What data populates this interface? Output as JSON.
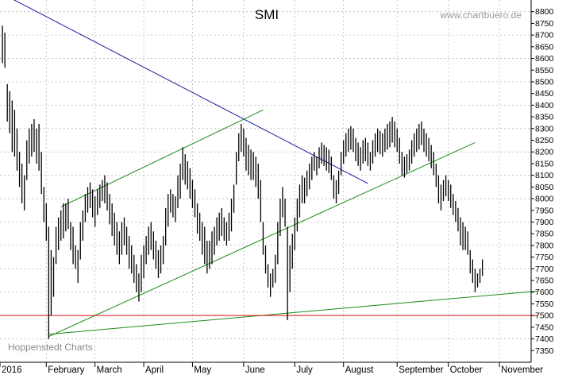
{
  "chart_data": {
    "type": "bar",
    "title": "SMI",
    "watermark": "www.chartbuero.de",
    "source_label": "Hoppenstedt Charts",
    "xlabel": "",
    "ylabel": "",
    "ylim": [
      7300,
      8850
    ],
    "xlim": [
      0,
      218
    ],
    "grid": true,
    "y_ticks": [
      7350,
      7400,
      7450,
      7500,
      7550,
      7600,
      7650,
      7700,
      7750,
      7800,
      7850,
      7900,
      7950,
      8000,
      8050,
      8100,
      8150,
      8200,
      8250,
      8300,
      8350,
      8400,
      8450,
      8500,
      8550,
      8600,
      8650,
      8700,
      8750,
      8800
    ],
    "x_ticks": [
      {
        "label": "2016",
        "x": 0
      },
      {
        "label": "February",
        "x": 19
      },
      {
        "label": "March",
        "x": 39
      },
      {
        "label": "April",
        "x": 59
      },
      {
        "label": "May",
        "x": 79
      },
      {
        "label": "June",
        "x": 100
      },
      {
        "label": "July",
        "x": 121
      },
      {
        "label": "August",
        "x": 141
      },
      {
        "label": "September",
        "x": 163
      },
      {
        "label": "October",
        "x": 184
      },
      {
        "label": "November",
        "x": 205
      }
    ],
    "series": [
      {
        "values": [
          [
            8740,
            8580
          ],
          [
            8710,
            8560
          ],
          [
            8490,
            8330
          ],
          [
            8460,
            8280
          ],
          [
            8420,
            8200
          ],
          [
            8380,
            8180
          ],
          [
            8300,
            8120
          ],
          [
            8200,
            8050
          ],
          [
            8150,
            7980
          ],
          [
            8100,
            7950
          ],
          [
            8250,
            8080
          ],
          [
            8300,
            8150
          ],
          [
            8320,
            8180
          ],
          [
            8340,
            8200
          ],
          [
            8300,
            8150
          ],
          [
            8320,
            8120
          ],
          [
            8200,
            8020
          ],
          [
            8050,
            7900
          ],
          [
            7980,
            7820
          ],
          [
            7880,
            7400
          ],
          [
            7780,
            7500
          ],
          [
            7750,
            7580
          ],
          [
            7880,
            7720
          ],
          [
            7920,
            7780
          ],
          [
            7950,
            7820
          ],
          [
            7980,
            7830
          ],
          [
            7980,
            7860
          ],
          [
            8000,
            7870
          ],
          [
            7900,
            7780
          ],
          [
            7880,
            7720
          ],
          [
            7800,
            7700
          ],
          [
            7780,
            7640
          ],
          [
            7900,
            7740
          ],
          [
            7950,
            7820
          ],
          [
            8020,
            7900
          ],
          [
            8050,
            7940
          ],
          [
            8070,
            7960
          ],
          [
            8040,
            7920
          ],
          [
            8010,
            7880
          ],
          [
            8040,
            7930
          ],
          [
            8060,
            7960
          ],
          [
            8080,
            7990
          ],
          [
            8100,
            7980
          ],
          [
            8070,
            7950
          ],
          [
            8020,
            7890
          ],
          [
            7980,
            7840
          ],
          [
            7940,
            7800
          ],
          [
            7900,
            7760
          ],
          [
            7860,
            7720
          ],
          [
            7900,
            7760
          ],
          [
            7920,
            7800
          ],
          [
            7880,
            7760
          ],
          [
            7840,
            7700
          ],
          [
            7800,
            7680
          ],
          [
            7760,
            7640
          ],
          [
            7720,
            7600
          ],
          [
            7680,
            7560
          ],
          [
            7760,
            7600
          ],
          [
            7800,
            7660
          ],
          [
            7840,
            7720
          ],
          [
            7880,
            7760
          ],
          [
            7900,
            7780
          ],
          [
            7860,
            7740
          ],
          [
            7820,
            7700
          ],
          [
            7780,
            7660
          ],
          [
            7800,
            7680
          ],
          [
            7840,
            7720
          ],
          [
            7960,
            7800
          ],
          [
            8020,
            7880
          ],
          [
            8040,
            7940
          ],
          [
            8020,
            7920
          ],
          [
            8010,
            7900
          ],
          [
            8100,
            7960
          ],
          [
            8150,
            8000
          ],
          [
            8220,
            8080
          ],
          [
            8190,
            8060
          ],
          [
            8160,
            8040
          ],
          [
            8130,
            8000
          ],
          [
            8080,
            7960
          ],
          [
            8040,
            7920
          ],
          [
            7980,
            7850
          ],
          [
            7940,
            7820
          ],
          [
            7900,
            7760
          ],
          [
            7880,
            7720
          ],
          [
            7820,
            7680
          ],
          [
            7820,
            7700
          ],
          [
            7860,
            7720
          ],
          [
            7880,
            7760
          ],
          [
            7920,
            7800
          ],
          [
            7940,
            7820
          ],
          [
            7960,
            7840
          ],
          [
            7920,
            7820
          ],
          [
            7900,
            7800
          ],
          [
            7940,
            7820
          ],
          [
            8000,
            7860
          ],
          [
            8060,
            7940
          ],
          [
            8200,
            8060
          ],
          [
            8280,
            8160
          ],
          [
            8320,
            8200
          ],
          [
            8300,
            8180
          ],
          [
            8260,
            8120
          ],
          [
            8230,
            8100
          ],
          [
            8210,
            8080
          ],
          [
            8200,
            8080
          ],
          [
            8180,
            8050
          ],
          [
            8150,
            8000
          ],
          [
            8080,
            7900
          ],
          [
            7900,
            7760
          ],
          [
            7800,
            7680
          ],
          [
            7720,
            7620
          ],
          [
            7680,
            7580
          ],
          [
            7700,
            7620
          ],
          [
            7760,
            7640
          ],
          [
            7900,
            7720
          ],
          [
            8000,
            7840
          ],
          [
            8050,
            7920
          ],
          [
            8000,
            7880
          ],
          [
            7880,
            7480
          ],
          [
            7800,
            7600
          ],
          [
            7850,
            7700
          ],
          [
            7920,
            7780
          ],
          [
            8000,
            7860
          ],
          [
            8060,
            7920
          ],
          [
            8100,
            7980
          ],
          [
            8090,
            7980
          ],
          [
            8120,
            8010
          ],
          [
            8150,
            8040
          ],
          [
            8180,
            8080
          ],
          [
            8200,
            8120
          ],
          [
            8180,
            8100
          ],
          [
            8220,
            8130
          ],
          [
            8240,
            8150
          ],
          [
            8230,
            8140
          ],
          [
            8220,
            8120
          ],
          [
            8210,
            8110
          ],
          [
            8180,
            8080
          ],
          [
            8100,
            8000
          ],
          [
            8080,
            7980
          ],
          [
            8120,
            8020
          ],
          [
            8200,
            8100
          ],
          [
            8250,
            8150
          ],
          [
            8280,
            8180
          ],
          [
            8300,
            8200
          ],
          [
            8310,
            8210
          ],
          [
            8300,
            8200
          ],
          [
            8260,
            8160
          ],
          [
            8240,
            8140
          ],
          [
            8220,
            8120
          ],
          [
            8250,
            8150
          ],
          [
            8260,
            8160
          ],
          [
            8240,
            8140
          ],
          [
            8200,
            8120
          ],
          [
            8250,
            8150
          ],
          [
            8280,
            8180
          ],
          [
            8300,
            8200
          ],
          [
            8290,
            8190
          ],
          [
            8280,
            8180
          ],
          [
            8300,
            8200
          ],
          [
            8320,
            8210
          ],
          [
            8330,
            8220
          ],
          [
            8350,
            8240
          ],
          [
            8330,
            8220
          ],
          [
            8300,
            8200
          ],
          [
            8260,
            8150
          ],
          [
            8200,
            8100
          ],
          [
            8180,
            8090
          ],
          [
            8190,
            8110
          ],
          [
            8210,
            8120
          ],
          [
            8250,
            8150
          ],
          [
            8280,
            8180
          ],
          [
            8300,
            8200
          ],
          [
            8320,
            8210
          ],
          [
            8330,
            8230
          ],
          [
            8300,
            8200
          ],
          [
            8280,
            8180
          ],
          [
            8260,
            8160
          ],
          [
            8230,
            8130
          ],
          [
            8200,
            8100
          ],
          [
            8150,
            8050
          ],
          [
            8100,
            7980
          ],
          [
            8060,
            7950
          ],
          [
            8080,
            7990
          ],
          [
            8100,
            8010
          ],
          [
            8080,
            7990
          ],
          [
            8060,
            7960
          ],
          [
            8020,
            7930
          ],
          [
            7990,
            7900
          ],
          [
            7960,
            7860
          ],
          [
            7920,
            7800
          ],
          [
            7900,
            7780
          ],
          [
            7880,
            7780
          ],
          [
            7860,
            7760
          ],
          [
            7780,
            7680
          ],
          [
            7740,
            7640
          ],
          [
            7700,
            7600
          ],
          [
            7680,
            7620
          ],
          [
            7700,
            7640
          ],
          [
            7740,
            7670
          ]
        ]
      }
    ],
    "trendlines": [
      {
        "color": "#1a1aa0",
        "from": [
          4,
          8860
        ],
        "to": [
          151,
          8065
        ]
      },
      {
        "color": "#1c8c1c",
        "from": [
          25,
          7965
        ],
        "to": [
          108,
          8380
        ]
      },
      {
        "color": "#1c8c1c",
        "from": [
          20,
          7410
        ],
        "to": [
          195,
          8240
        ]
      },
      {
        "color": "#1c8c1c",
        "from": [
          20,
          7420
        ],
        "to": [
          221,
          7605
        ]
      },
      {
        "color": "#e01010",
        "from": [
          0,
          7500
        ],
        "to": [
          221,
          7500
        ]
      }
    ]
  }
}
